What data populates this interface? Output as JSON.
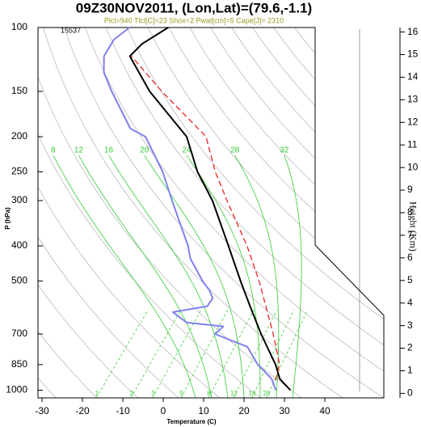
{
  "chart_data": {
    "type": "skew-t",
    "title": "09Z30NOV2011, (Lon,Lat)=(79.6,-1.1)",
    "subtitle": "Plcl=940 Tlcl[C]=23 Shox=2 Pwat[cm]=5 Cape[J]= 2310",
    "station": "16537",
    "xlabel": "Temperature (C)",
    "ylabel": "P (hPa)",
    "y2label": "Height (Km)",
    "xlim": [
      -31,
      54.6
    ],
    "ylim": [
      1050,
      100
    ],
    "log_y": true,
    "xticks": [
      -30,
      -20,
      -10,
      0,
      10,
      20,
      30,
      40
    ],
    "yticks": [
      100,
      150,
      200,
      250,
      300,
      400,
      500,
      700,
      850,
      1000
    ],
    "y2lim": [
      -0.2,
      16.2
    ],
    "y2ticks": [
      0,
      1,
      2,
      3,
      4,
      5,
      6,
      7,
      8,
      9,
      10,
      11,
      12,
      13,
      14,
      15,
      16
    ],
    "moist_adiabats": {
      "color": "#33cc33",
      "values": [
        8,
        12,
        16,
        20,
        24,
        28,
        32
      ]
    },
    "mixing_ratios": {
      "color": "#33cc33",
      "values": [
        1,
        2,
        3,
        5,
        8,
        12,
        16,
        20
      ]
    },
    "series": [
      {
        "color": "#000000",
        "dash": false,
        "p": [
          1000,
          931,
          850,
          700,
          587,
          500,
          400,
          300,
          250,
          200,
          150,
          120,
          111,
          100
        ],
        "t": [
          29.8,
          24.7,
          20.5,
          10.2,
          1.4,
          -6.5,
          -17.2,
          -31.1,
          -41.1,
          -51.5,
          -70.6,
          -83.2,
          -82.9,
          -80.0
        ]
      },
      {
        "color": "#8080ee",
        "dash": false,
        "p": [
          1000,
          931,
          850,
          759,
          700,
          667,
          651,
          609,
          587,
          558,
          530,
          500,
          433,
          400,
          300,
          250,
          200,
          190,
          150,
          133,
          120,
          108,
          100
        ],
        "t": [
          26.2,
          22.7,
          16.1,
          9.6,
          -1.2,
          -0.8,
          -10.7,
          -16.4,
          -9.2,
          -9.6,
          -12.2,
          -15.9,
          -23.9,
          -27.2,
          -41.1,
          -49.7,
          -61.7,
          -67.2,
          -80,
          -86.1,
          -89.6,
          -90.8,
          -89.6
        ]
      },
      {
        "color": "#ee2222",
        "dash": true,
        "p": [
          940,
          850,
          700,
          500,
          400,
          300,
          250,
          200,
          150,
          120
        ],
        "t": [
          24,
          21.5,
          13.2,
          -1.9,
          -12.6,
          -27.5,
          -36.7,
          -46.7,
          -67.6,
          -82.8
        ]
      }
    ]
  }
}
